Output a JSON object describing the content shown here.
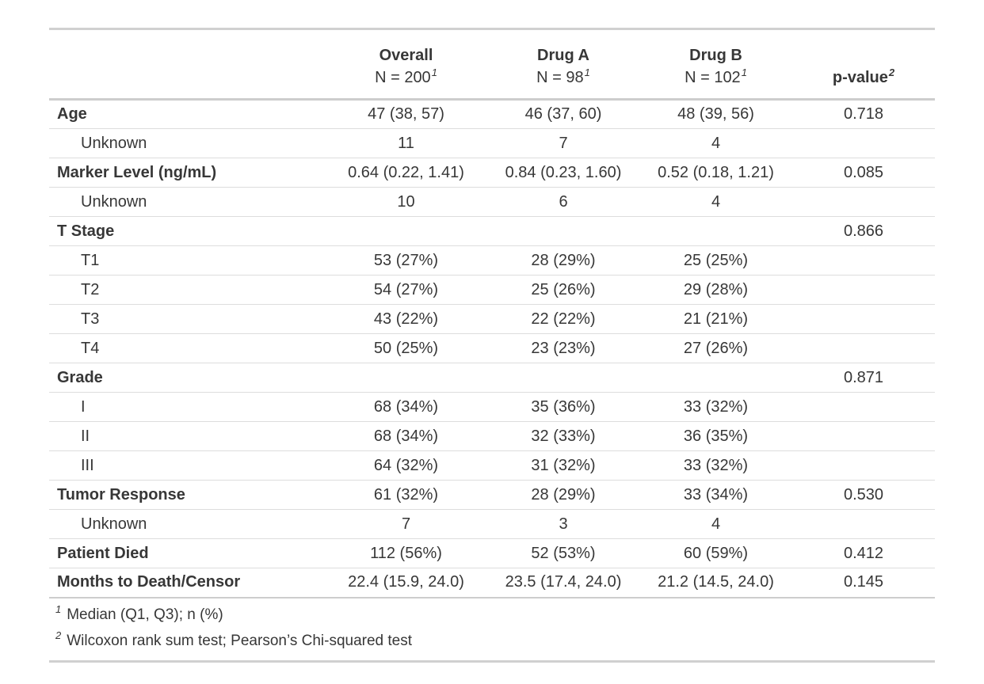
{
  "table": {
    "columns": [
      {
        "label": "",
        "sublabel": "",
        "footnote_ref": ""
      },
      {
        "label": "Overall",
        "sublabel": "N = 200",
        "footnote_ref": "1"
      },
      {
        "label": "Drug A",
        "sublabel": "N = 98",
        "footnote_ref": "1"
      },
      {
        "label": "Drug B",
        "sublabel": "N = 102",
        "footnote_ref": "1"
      },
      {
        "label": "p-value",
        "sublabel": "",
        "footnote_ref": "2"
      }
    ],
    "rows": [
      {
        "label": "Age",
        "bold": true,
        "indent": false,
        "overall": "47 (38, 57)",
        "drug_a": "46 (37, 60)",
        "drug_b": "48 (39, 56)",
        "p_value": "0.718"
      },
      {
        "label": "Unknown",
        "bold": false,
        "indent": true,
        "overall": "11",
        "drug_a": "7",
        "drug_b": "4",
        "p_value": ""
      },
      {
        "label": "Marker Level (ng/mL)",
        "bold": true,
        "indent": false,
        "overall": "0.64 (0.22, 1.41)",
        "drug_a": "0.84 (0.23, 1.60)",
        "drug_b": "0.52 (0.18, 1.21)",
        "p_value": "0.085"
      },
      {
        "label": "Unknown",
        "bold": false,
        "indent": true,
        "overall": "10",
        "drug_a": "6",
        "drug_b": "4",
        "p_value": ""
      },
      {
        "label": "T Stage",
        "bold": true,
        "indent": false,
        "overall": "",
        "drug_a": "",
        "drug_b": "",
        "p_value": "0.866"
      },
      {
        "label": "T1",
        "bold": false,
        "indent": true,
        "overall": "53 (27%)",
        "drug_a": "28 (29%)",
        "drug_b": "25 (25%)",
        "p_value": ""
      },
      {
        "label": "T2",
        "bold": false,
        "indent": true,
        "overall": "54 (27%)",
        "drug_a": "25 (26%)",
        "drug_b": "29 (28%)",
        "p_value": ""
      },
      {
        "label": "T3",
        "bold": false,
        "indent": true,
        "overall": "43 (22%)",
        "drug_a": "22 (22%)",
        "drug_b": "21 (21%)",
        "p_value": ""
      },
      {
        "label": "T4",
        "bold": false,
        "indent": true,
        "overall": "50 (25%)",
        "drug_a": "23 (23%)",
        "drug_b": "27 (26%)",
        "p_value": ""
      },
      {
        "label": "Grade",
        "bold": true,
        "indent": false,
        "overall": "",
        "drug_a": "",
        "drug_b": "",
        "p_value": "0.871"
      },
      {
        "label": "I",
        "bold": false,
        "indent": true,
        "overall": "68 (34%)",
        "drug_a": "35 (36%)",
        "drug_b": "33 (32%)",
        "p_value": ""
      },
      {
        "label": "II",
        "bold": false,
        "indent": true,
        "overall": "68 (34%)",
        "drug_a": "32 (33%)",
        "drug_b": "36 (35%)",
        "p_value": ""
      },
      {
        "label": "III",
        "bold": false,
        "indent": true,
        "overall": "64 (32%)",
        "drug_a": "31 (32%)",
        "drug_b": "33 (32%)",
        "p_value": ""
      },
      {
        "label": "Tumor Response",
        "bold": true,
        "indent": false,
        "overall": "61 (32%)",
        "drug_a": "28 (29%)",
        "drug_b": "33 (34%)",
        "p_value": "0.530"
      },
      {
        "label": "Unknown",
        "bold": false,
        "indent": true,
        "overall": "7",
        "drug_a": "3",
        "drug_b": "4",
        "p_value": ""
      },
      {
        "label": "Patient Died",
        "bold": true,
        "indent": false,
        "overall": "112 (56%)",
        "drug_a": "52 (53%)",
        "drug_b": "60 (59%)",
        "p_value": "0.412"
      },
      {
        "label": "Months to Death/Censor",
        "bold": true,
        "indent": false,
        "overall": "22.4 (15.9, 24.0)",
        "drug_a": "23.5 (17.4, 24.0)",
        "drug_b": "21.2 (14.5, 24.0)",
        "p_value": "0.145"
      }
    ],
    "footnotes": [
      {
        "marker": "1",
        "text": "Median (Q1, Q3); n (%)"
      },
      {
        "marker": "2",
        "text": "Wilcoxon rank sum test; Pearson’s Chi-squared test"
      }
    ]
  },
  "colors": {
    "text": "#373737",
    "border_heavy": "#D0D0D0",
    "border_light": "#DDDDDD",
    "background": "#FFFFFF"
  },
  "chart_data": {
    "type": "table",
    "title": "",
    "columns": [
      "",
      "Overall N = 200",
      "Drug A N = 98",
      "Drug B N = 102",
      "p-value"
    ],
    "rows": [
      [
        "Age",
        "47 (38, 57)",
        "46 (37, 60)",
        "48 (39, 56)",
        "0.718"
      ],
      [
        "Unknown",
        "11",
        "7",
        "4",
        ""
      ],
      [
        "Marker Level (ng/mL)",
        "0.64 (0.22, 1.41)",
        "0.84 (0.23, 1.60)",
        "0.52 (0.18, 1.21)",
        "0.085"
      ],
      [
        "Unknown",
        "10",
        "6",
        "4",
        ""
      ],
      [
        "T Stage",
        "",
        "",
        "",
        "0.866"
      ],
      [
        "T1",
        "53 (27%)",
        "28 (29%)",
        "25 (25%)",
        ""
      ],
      [
        "T2",
        "54 (27%)",
        "25 (26%)",
        "29 (28%)",
        ""
      ],
      [
        "T3",
        "43 (22%)",
        "22 (22%)",
        "21 (21%)",
        ""
      ],
      [
        "T4",
        "50 (25%)",
        "23 (23%)",
        "27 (26%)",
        ""
      ],
      [
        "Grade",
        "",
        "",
        "",
        "0.871"
      ],
      [
        "I",
        "68 (34%)",
        "35 (36%)",
        "33 (32%)",
        ""
      ],
      [
        "II",
        "68 (34%)",
        "32 (33%)",
        "36 (35%)",
        ""
      ],
      [
        "III",
        "64 (32%)",
        "31 (32%)",
        "33 (32%)",
        ""
      ],
      [
        "Tumor Response",
        "61 (32%)",
        "28 (29%)",
        "33 (34%)",
        "0.530"
      ],
      [
        "Unknown",
        "7",
        "3",
        "4",
        ""
      ],
      [
        "Patient Died",
        "112 (56%)",
        "52 (53%)",
        "60 (59%)",
        "0.412"
      ],
      [
        "Months to Death/Censor",
        "22.4 (15.9, 24.0)",
        "23.5 (17.4, 24.0)",
        "21.2 (14.5, 24.0)",
        "0.145"
      ]
    ],
    "footnotes": [
      "1 Median (Q1, Q3); n (%)",
      "2 Wilcoxon rank sum test; Pearson’s Chi-squared test"
    ]
  }
}
